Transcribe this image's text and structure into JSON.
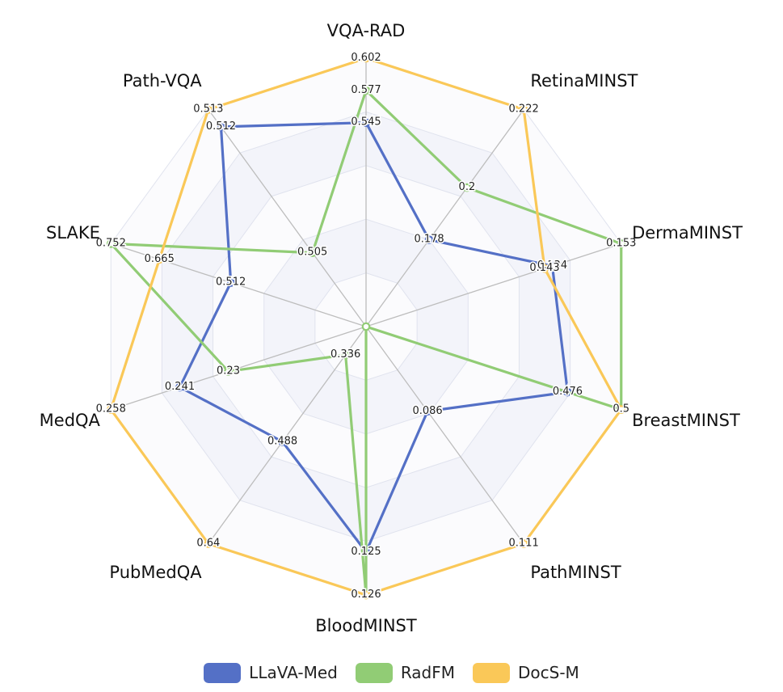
{
  "chart_data": {
    "type": "radar",
    "axes": [
      "VQA-RAD",
      "RetinaMINST",
      "DermaMINST",
      "BreastMINST",
      "PathMINST",
      "BloodMINST",
      "PubMedQA",
      "MedQA",
      "SLAKE",
      "Path-VQA"
    ],
    "grid": true,
    "legend_position": "bottom-center",
    "series": [
      {
        "name": "LLaVA-Med",
        "color": "#5470c6",
        "values": [
          0.545,
          0.178,
          0.134,
          0.476,
          0.086,
          0.125,
          0.488,
          0.241,
          0.512,
          0.512
        ],
        "fractions": [
          0.76,
          0.4,
          0.73,
          0.79,
          0.39,
          0.84,
          0.53,
          0.73,
          0.53,
          0.92
        ]
      },
      {
        "name": "RadFM",
        "color": "#91cc75",
        "values": [
          0.577,
          0.2,
          0.153,
          0.5,
          0.086,
          0.125,
          0.336,
          0.23,
          0.752,
          0.505
        ],
        "fractions": [
          0.88,
          0.64,
          1.0,
          1.0,
          0.0,
          1.0,
          0.13,
          0.54,
          1.0,
          0.34
        ],
        "label_mask": [
          true,
          true,
          true,
          false,
          false,
          false,
          true,
          true,
          true,
          true
        ]
      },
      {
        "name": "DocS-M",
        "color": "#fac858",
        "values": [
          0.602,
          0.222,
          0.143,
          0.5,
          0.111,
          0.126,
          0.64,
          0.258,
          0.665,
          0.513
        ],
        "fractions": [
          1.0,
          1.0,
          0.7,
          1.0,
          1.0,
          1.0,
          1.0,
          1.0,
          0.81,
          1.0
        ]
      }
    ]
  },
  "legend": [
    {
      "name": "LLaVA-Med",
      "color": "#5470c6"
    },
    {
      "name": "RadFM",
      "color": "#91cc75"
    },
    {
      "name": "DocS-M",
      "color": "#fac858"
    }
  ]
}
